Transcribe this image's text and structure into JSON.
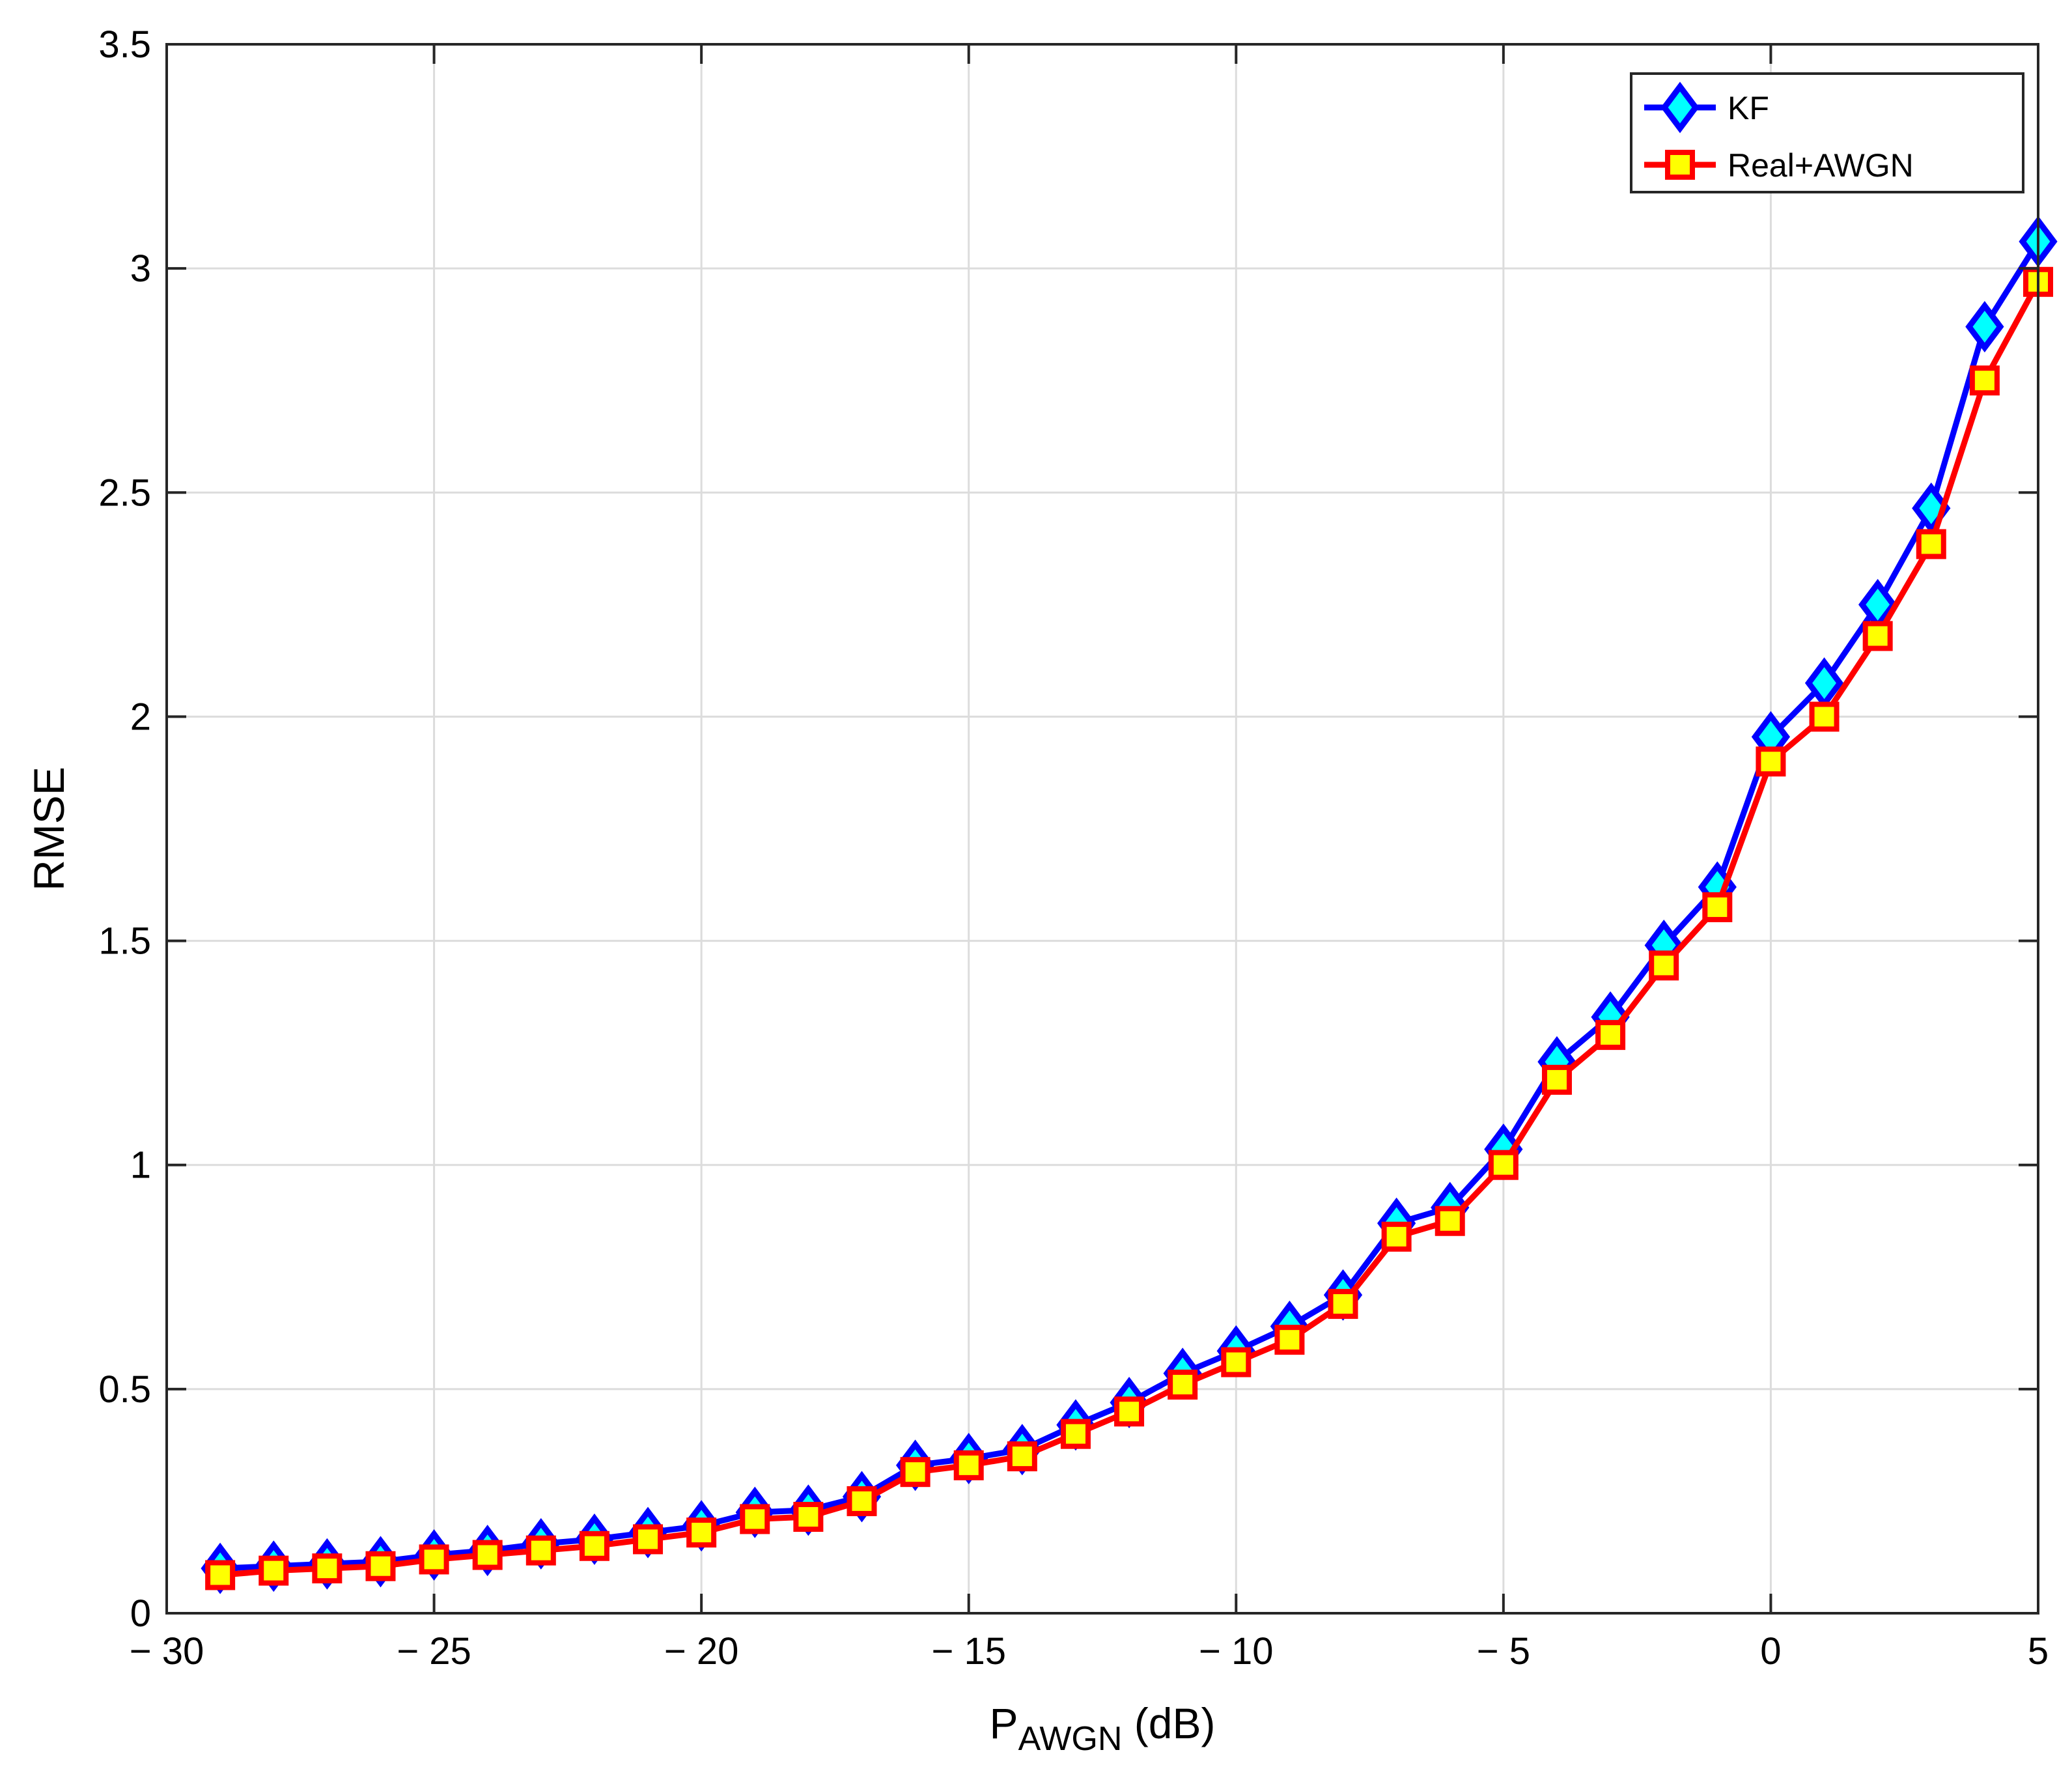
{
  "chart_data": {
    "type": "line",
    "title": "",
    "xlabel": {
      "main": "P",
      "sub": "AWGN",
      "unit": " (dB)"
    },
    "ylabel": "RMSE",
    "xlim": [
      -30,
      5
    ],
    "ylim": [
      0,
      3.5
    ],
    "xticks": [
      -30,
      -25,
      -20,
      -15,
      -10,
      -5,
      0,
      5
    ],
    "yticks": [
      0,
      0.5,
      1,
      1.5,
      2,
      2.5,
      3,
      3.5
    ],
    "xtick_labels": [
      "− 30",
      "− 25",
      "− 20",
      "− 15",
      "− 10",
      "− 5",
      "0",
      "5"
    ],
    "ytick_labels": [
      "0",
      "0.5",
      "1",
      "1.5",
      "2",
      "2.5",
      "3",
      "3.5"
    ],
    "grid": true,
    "legend_position": "top-right",
    "x": [
      -29,
      -28,
      -27,
      -26,
      -25,
      -24,
      -23,
      -22,
      -21,
      -20,
      -19,
      -18,
      -17,
      -16,
      -15,
      -14,
      -13,
      -12,
      -11,
      -10,
      -9,
      -8,
      -7,
      -6,
      -5,
      -4,
      -3,
      -2,
      -1,
      0,
      1,
      2,
      3,
      4,
      5
    ],
    "series": [
      {
        "name": "KF",
        "color": "#0000ff",
        "marker": "diamond",
        "marker_fill": "#00ffff",
        "values": [
          0.1,
          0.105,
          0.11,
          0.115,
          0.13,
          0.14,
          0.155,
          0.165,
          0.18,
          0.195,
          0.225,
          0.23,
          0.26,
          0.33,
          0.345,
          0.365,
          0.42,
          0.47,
          0.535,
          0.585,
          0.64,
          0.71,
          0.87,
          0.905,
          1.035,
          1.23,
          1.33,
          1.49,
          1.62,
          1.955,
          2.075,
          2.25,
          2.465,
          2.87,
          3.06
        ]
      },
      {
        "name": "Real+AWGN",
        "color": "#ff0000",
        "marker": "square",
        "marker_fill": "#ffff00",
        "values": [
          0.085,
          0.095,
          0.1,
          0.105,
          0.12,
          0.13,
          0.14,
          0.15,
          0.165,
          0.18,
          0.21,
          0.215,
          0.25,
          0.315,
          0.33,
          0.35,
          0.4,
          0.45,
          0.51,
          0.56,
          0.61,
          0.69,
          0.84,
          0.875,
          1.0,
          1.19,
          1.29,
          1.445,
          1.575,
          1.9,
          2.0,
          2.18,
          2.385,
          2.75,
          2.97
        ]
      }
    ]
  }
}
